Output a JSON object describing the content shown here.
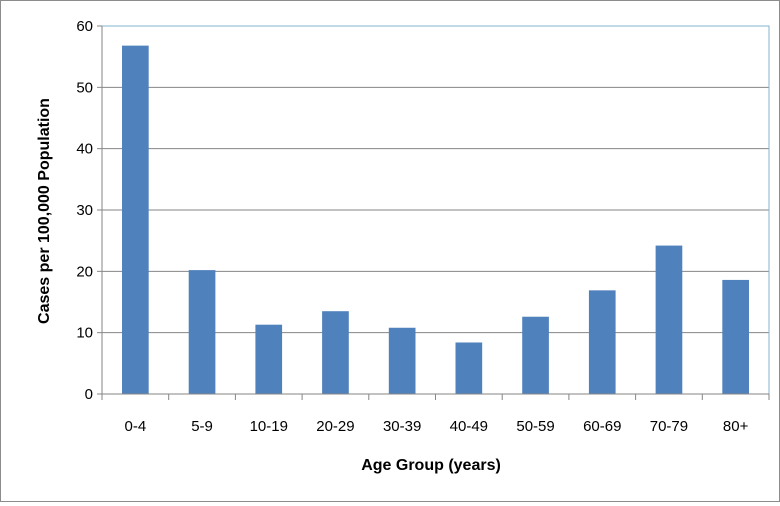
{
  "chart_data": {
    "type": "bar",
    "title": "",
    "xlabel": "Age Group (years)",
    "ylabel": "Cases per 100,000 Population",
    "categories": [
      "0-4",
      "5-9",
      "10-19",
      "20-29",
      "30-39",
      "40-49",
      "50-59",
      "60-69",
      "70-79",
      "80+"
    ],
    "values": [
      56.8,
      20.2,
      11.3,
      13.5,
      10.8,
      8.4,
      12.6,
      16.9,
      24.2,
      18.6
    ],
    "ylim": [
      0,
      60
    ],
    "yticks": [
      0,
      10,
      20,
      30,
      40,
      50,
      60
    ],
    "grid": true,
    "legend": "none",
    "bar_color": "#4f81bd",
    "grid_color": "#868686",
    "plot_border_color": "#86b3d1"
  }
}
